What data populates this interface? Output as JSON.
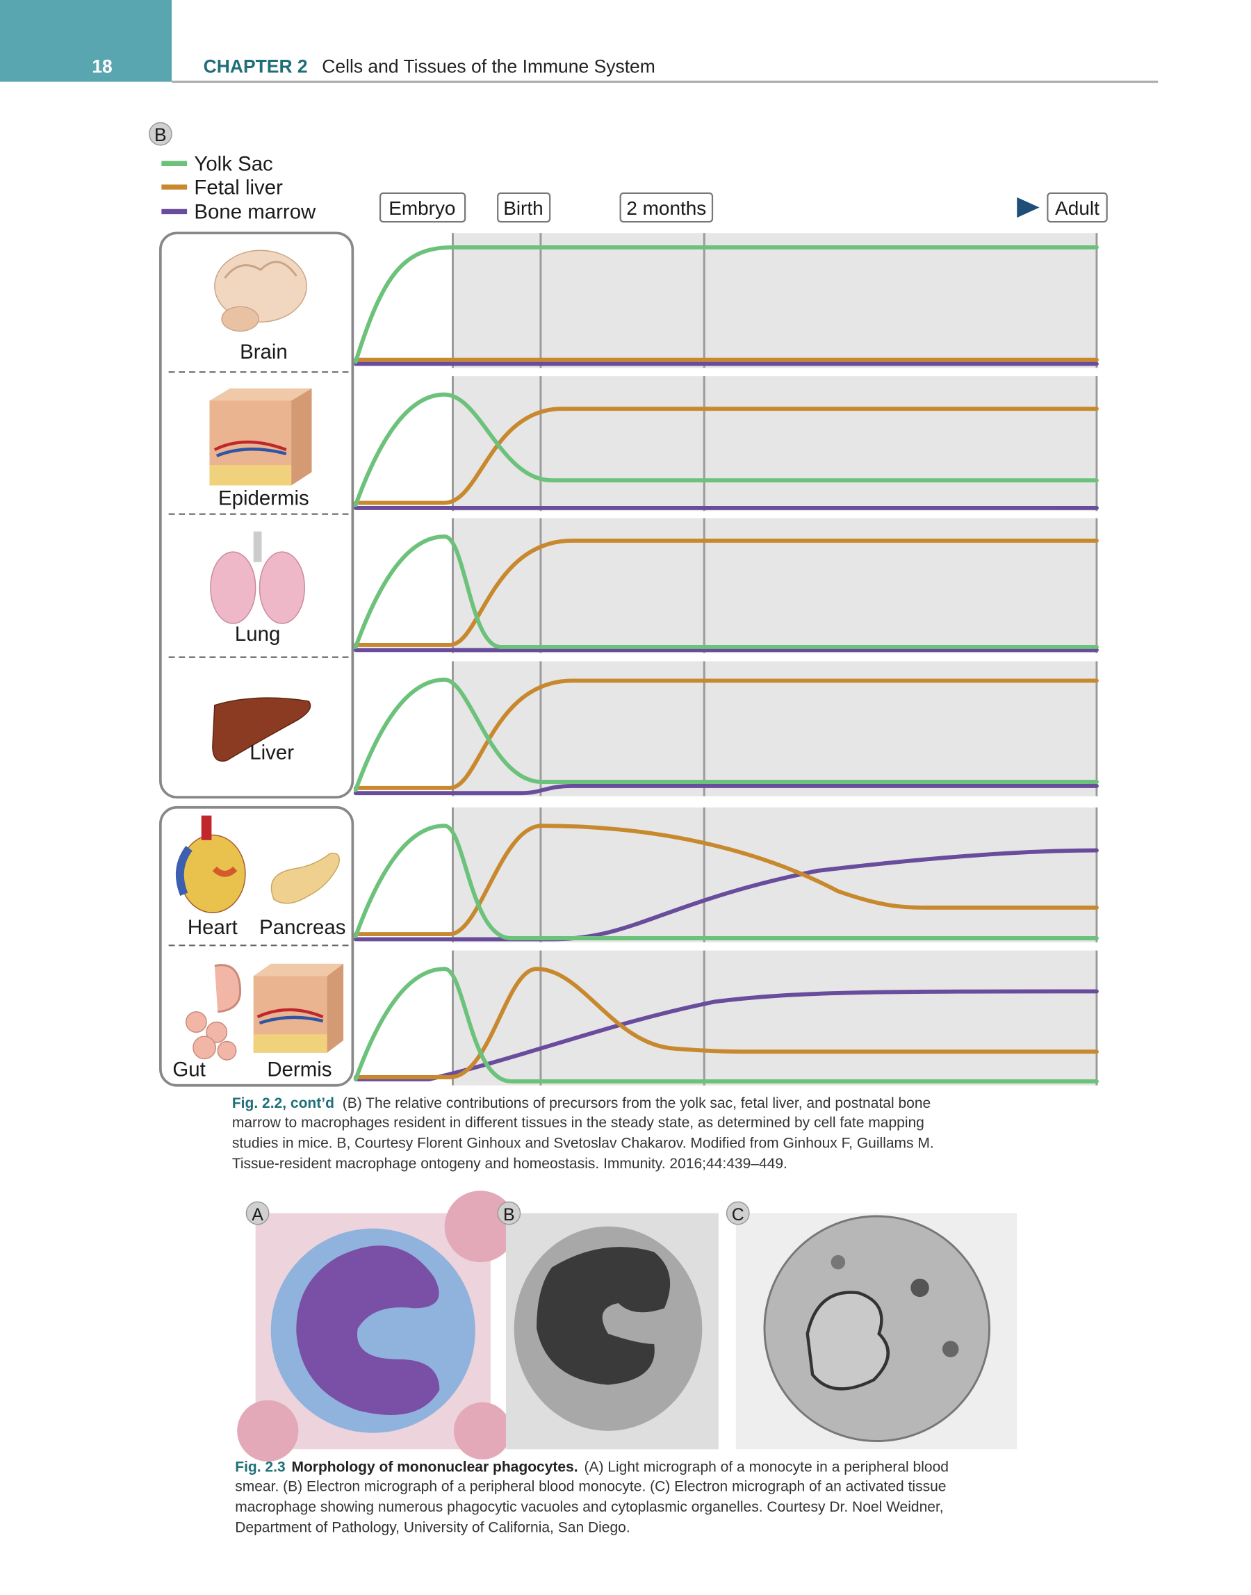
{
  "header": {
    "page_number": "18",
    "chapter": "CHAPTER 2",
    "chapter_title": "Cells and Tissues of the Immune System"
  },
  "figure_2_2": {
    "panel_label": "B",
    "legend": [
      "Yolk Sac",
      "Fetal liver",
      "Bone marrow"
    ],
    "timeline": [
      "Embryo",
      "Birth",
      "2 months",
      "Adult"
    ],
    "tissues": [
      "Brain",
      "Epidermis",
      "Lung",
      "Liver",
      "Heart",
      "Pancreas",
      "Gut",
      "Dermis"
    ],
    "caption": {
      "label": "Fig. 2.2, cont’d",
      "lines": [
        "(B) The relative contributions of precursors from the yolk sac, fetal liver, and postnatal bone",
        "marrow to macrophages resident in different tissues in the steady state, as determined by cell fate mapping",
        "studies in mice. B, Courtesy Florent Ginhoux and Svetoslav Chakarov. Modified from Ginhoux F, Guillams M.",
        "Tissue-resident macrophage ontogeny and homeostasis. Immunity. 2016;44:439–449."
      ]
    }
  },
  "figure_2_3": {
    "panel_labels": [
      "A",
      "B",
      "C"
    ],
    "caption": {
      "label": "Fig. 2.3",
      "title": "Morphology of mononuclear phagocytes.",
      "lines": [
        "(A) Light micrograph of a monocyte in a peripheral blood",
        "smear. (B) Electron micrograph of a peripheral blood monocyte. (C) Electron micrograph of an activated tissue",
        "macrophage showing numerous phagocytic vacuoles and cytoplasmic organelles. Courtesy Dr. Noel Weidner,",
        "Department of Pathology, University of California, San Diego."
      ]
    }
  }
}
